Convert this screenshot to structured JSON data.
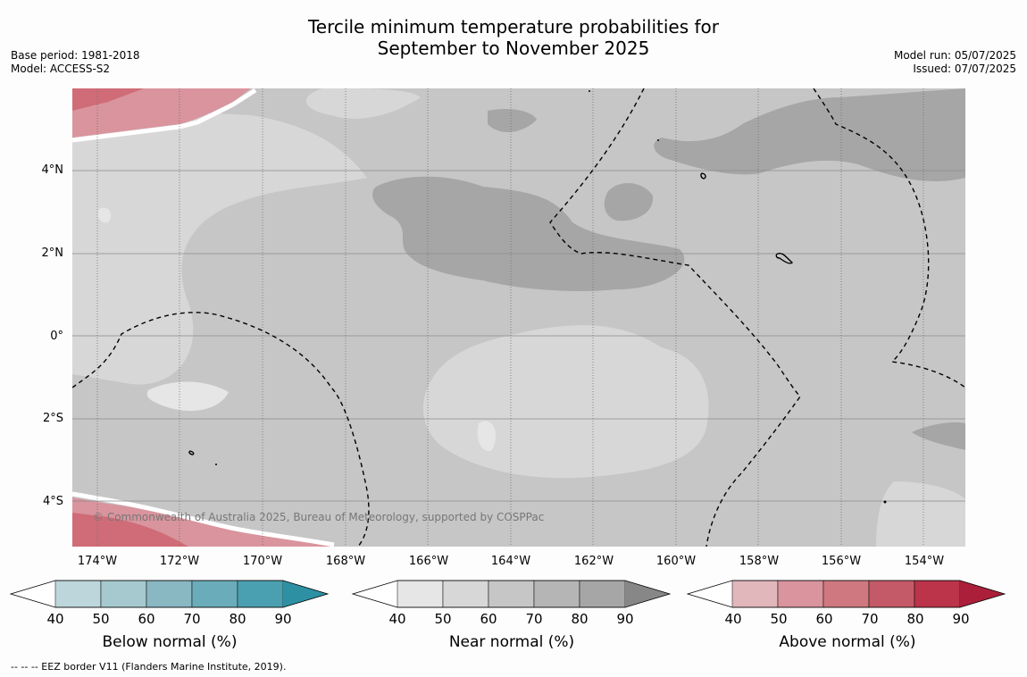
{
  "title": {
    "line1": "Tercile minimum temperature probabilities for",
    "line2": "September to November 2025"
  },
  "meta_left": {
    "base_period": "Base period: 1981-2018",
    "model": "Model: ACCESS-S2"
  },
  "meta_right": {
    "model_run": "Model run: 05/07/2025",
    "issued": "Issued: 07/07/2025"
  },
  "map": {
    "lat_labels": [
      "4°N",
      "2°N",
      "0°",
      "2°S",
      "4°S"
    ],
    "lon_labels": [
      "174°W",
      "172°W",
      "170°W",
      "168°W",
      "166°W",
      "164°W",
      "162°W",
      "160°W",
      "158°W",
      "156°W",
      "154°W"
    ],
    "copyright": "© Commonwealth of Australia 2025, Bureau of Meteorology, supported by COSPPac",
    "colors": {
      "near_40_50": "#e6e6e6",
      "near_50_60": "#d7d7d7",
      "near_60_70": "#c6c6c6",
      "near_80_90": "#a6a6a6",
      "above_50_60": "#d9949d",
      "above_60_70": "#cf6c77"
    }
  },
  "colorbars": [
    {
      "title": "Below normal (%)",
      "ticks": [
        "40",
        "50",
        "60",
        "70",
        "80",
        "90"
      ],
      "colors": [
        "#ffffff",
        "#bdd6dc",
        "#a5c9ce",
        "#89b7c2",
        "#6aacba",
        "#4aa0b0",
        "#2e90a3"
      ]
    },
    {
      "title": "Near normal (%)",
      "ticks": [
        "40",
        "50",
        "60",
        "70",
        "80",
        "90"
      ],
      "colors": [
        "#ffffff",
        "#e6e6e6",
        "#d7d7d7",
        "#c6c6c6",
        "#b5b5b5",
        "#a6a6a6",
        "#878787"
      ]
    },
    {
      "title": "Above normal (%)",
      "ticks": [
        "40",
        "50",
        "60",
        "70",
        "80",
        "90"
      ],
      "colors": [
        "#ffffff",
        "#e1b7bc",
        "#d9949d",
        "#cf7880",
        "#c45a67",
        "#bb3449",
        "#ab1f3a"
      ]
    }
  ],
  "footnote": "--  --  -- EEZ border V11 (Flanders Marine Institute, 2019)."
}
